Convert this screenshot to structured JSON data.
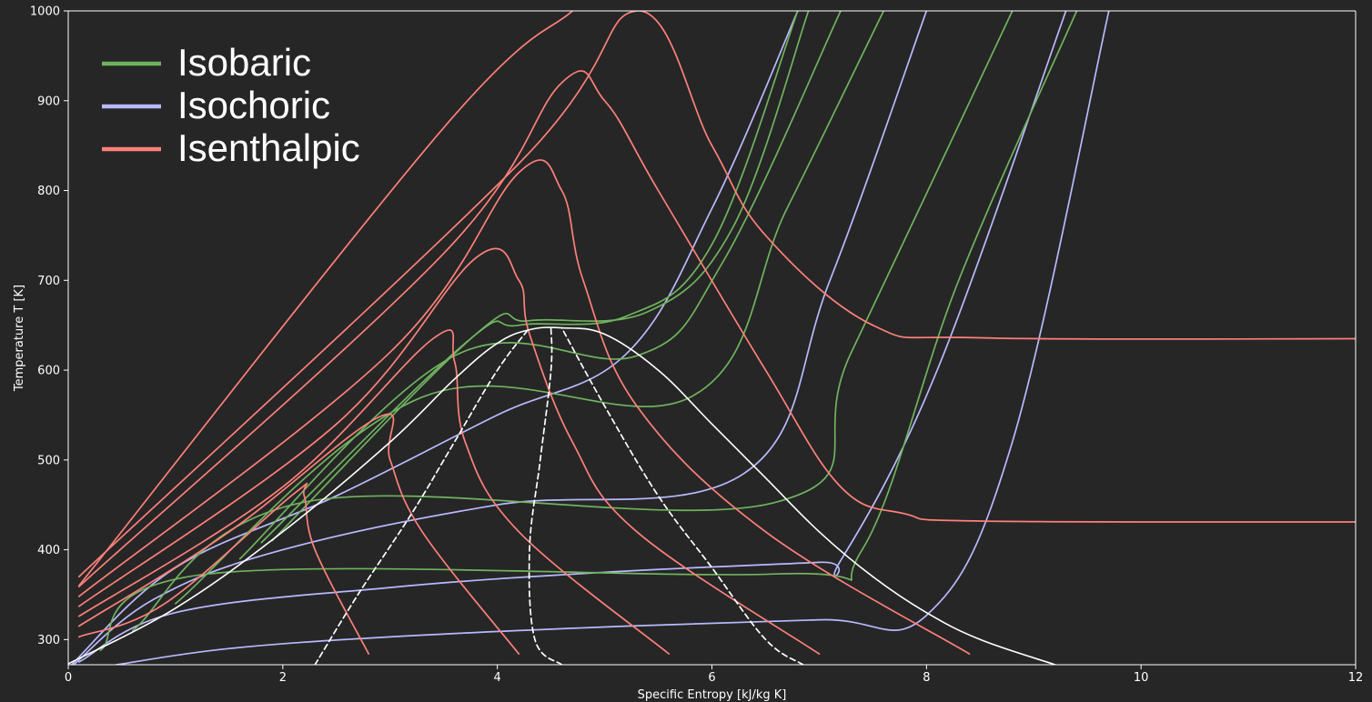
{
  "chart_data": {
    "type": "line",
    "title": "",
    "xlabel": "Specific Entropy [kJ/kg K]",
    "ylabel": "Temperature T [K]",
    "xlim": [
      0,
      12
    ],
    "ylim": [
      272,
      1000
    ],
    "xticks": [
      0,
      2,
      4,
      6,
      8,
      10,
      12
    ],
    "yticks": [
      300,
      400,
      500,
      600,
      700,
      800,
      900,
      1000
    ],
    "grid": false,
    "legend_position": "top-left",
    "background": "#262626",
    "legend": [
      {
        "label": "Isobaric",
        "color": "#6fb35f"
      },
      {
        "label": "Isochoric",
        "color": "#b9b9ff"
      },
      {
        "label": "Isenthalpic",
        "color": "#ff807a"
      }
    ],
    "series": [
      {
        "group": "saturation",
        "color": "#ffffff",
        "dash": false,
        "x": [
          0,
          1.0,
          2.0,
          3.0,
          3.6,
          4.0,
          4.3,
          4.6,
          5.0,
          5.5,
          6.0,
          6.5,
          7.0,
          7.5,
          8.0,
          8.5,
          9.2
        ],
        "y": [
          273,
          335,
          420,
          520,
          590,
          630,
          645,
          647,
          640,
          600,
          540,
          480,
          420,
          370,
          330,
          300,
          272
        ]
      },
      {
        "group": "quality",
        "color": "#ffffff",
        "dash": true,
        "x": [
          2.3,
          2.7,
          3.2,
          3.6,
          4.0,
          4.3
        ],
        "y": [
          272,
          350,
          440,
          520,
          600,
          647
        ]
      },
      {
        "group": "quality",
        "color": "#ffffff",
        "dash": true,
        "x": [
          4.6,
          4.35,
          4.3,
          4.4,
          4.5,
          4.5
        ],
        "y": [
          272,
          300,
          400,
          500,
          600,
          647
        ]
      },
      {
        "group": "quality",
        "color": "#ffffff",
        "dash": true,
        "x": [
          6.85,
          6.5,
          6.0,
          5.5,
          5.0,
          4.6
        ],
        "y": [
          272,
          300,
          380,
          460,
          560,
          647
        ]
      },
      {
        "group": "isobaric",
        "color": "#6fb35f",
        "dash": false,
        "x": [
          0.3,
          1.3,
          6.6,
          7.4,
          8.3,
          9.4
        ],
        "y": [
          288,
          373,
          373,
          400,
          700,
          1000
        ]
      },
      {
        "group": "isobaric",
        "color": "#6fb35f",
        "dash": false,
        "x": [
          0.6,
          2.2,
          6.6,
          7.3,
          8.8
        ],
        "y": [
          310,
          453,
          453,
          620,
          1000
        ]
      },
      {
        "group": "isobaric",
        "color": "#6fb35f",
        "dash": false,
        "x": [
          1.0,
          3.3,
          5.8,
          6.7,
          7.6
        ],
        "y": [
          340,
          570,
          570,
          780,
          1000
        ]
      },
      {
        "group": "isobaric",
        "color": "#6fb35f",
        "dash": false,
        "x": [
          1.6,
          3.6,
          5.3,
          6.1,
          7.2
        ],
        "y": [
          390,
          616,
          616,
          720,
          1000
        ]
      },
      {
        "group": "isobaric",
        "color": "#6fb35f",
        "dash": false,
        "x": [
          1.8,
          3.7,
          4.2,
          5.2,
          6.0,
          6.8
        ],
        "y": [
          408,
          630,
          650,
          660,
          740,
          1000
        ]
      },
      {
        "group": "isobaric",
        "color": "#6fb35f",
        "dash": false,
        "x": [
          1.9,
          3.8,
          4.3,
          5.4,
          6.2,
          6.9
        ],
        "y": [
          410,
          640,
          655,
          665,
          760,
          1000
        ]
      },
      {
        "group": "isochoric",
        "color": "#b9b9ff",
        "dash": false,
        "x": [
          0.45,
          1.5,
          3.0,
          5.0,
          7.0,
          8.0,
          8.8,
          9.7
        ],
        "y": [
          272,
          290,
          303,
          314,
          322,
          327,
          520,
          1000
        ]
      },
      {
        "group": "isochoric",
        "color": "#b9b9ff",
        "dash": false,
        "x": [
          0.1,
          1.0,
          3.0,
          5.0,
          7.0,
          7.2,
          8.1,
          9.3
        ],
        "y": [
          275,
          330,
          358,
          375,
          386,
          388,
          600,
          1000
        ]
      },
      {
        "group": "isochoric",
        "color": "#b9b9ff",
        "dash": false,
        "x": [
          0.05,
          0.8,
          2.0,
          4.0,
          6.3,
          7.1,
          8.0
        ],
        "y": [
          272,
          345,
          400,
          450,
          485,
          700,
          1000
        ]
      },
      {
        "group": "isochoric",
        "color": "#b9b9ff",
        "dash": false,
        "x": [
          0.03,
          1.0,
          2.5,
          4.0,
          5.2,
          6.0,
          6.8
        ],
        "y": [
          272,
          380,
          460,
          550,
          618,
          780,
          1000
        ]
      },
      {
        "group": "isenthalpic",
        "color": "#ff807a",
        "dash": false,
        "x": [
          2.8,
          2.3,
          2.2,
          2.1,
          0.9,
          0.1
        ],
        "y": [
          284,
          400,
          460,
          462,
          340,
          303
        ]
      },
      {
        "group": "isenthalpic",
        "color": "#ff807a",
        "dash": false,
        "x": [
          4.2,
          3.3,
          3.0,
          2.9,
          1.5,
          0.1
        ],
        "y": [
          284,
          420,
          500,
          548,
          420,
          315
        ]
      },
      {
        "group": "isenthalpic",
        "color": "#ff807a",
        "dash": false,
        "x": [
          5.6,
          4.2,
          3.7,
          3.6,
          3.4,
          2.0,
          0.1
        ],
        "y": [
          284,
          420,
          520,
          610,
          635,
          470,
          326
        ]
      },
      {
        "group": "isenthalpic",
        "color": "#ff807a",
        "dash": false,
        "x": [
          7.0,
          5.3,
          4.7,
          4.3,
          4.2,
          3.8,
          2.5,
          0.1
        ],
        "y": [
          284,
          420,
          520,
          640,
          700,
          725,
          540,
          337
        ]
      },
      {
        "group": "isenthalpic",
        "color": "#ff807a",
        "dash": false,
        "x": [
          8.4,
          6.5,
          5.3,
          4.8,
          4.6,
          4.2,
          3.0,
          0.1
        ],
        "y": [
          284,
          420,
          560,
          700,
          800,
          820,
          620,
          348
        ]
      },
      {
        "group": "isenthalpic",
        "color": "#ff807a",
        "dash": false,
        "x": [
          12.0,
          8.5,
          7.8,
          7.2,
          6.5,
          5.5,
          5.0,
          4.6,
          3.5,
          0.1
        ],
        "y": [
          431,
          432,
          440,
          470,
          600,
          800,
          900,
          920,
          730,
          359
        ]
      },
      {
        "group": "isenthalpic",
        "color": "#ff807a",
        "dash": false,
        "x": [
          12.0,
          8.5,
          7.5,
          6.5,
          6.0,
          5.3,
          4.2,
          0.1
        ],
        "y": [
          635,
          636,
          650,
          750,
          850,
          1000,
          830,
          370
        ]
      },
      {
        "group": "isenthalpic",
        "color": "#ff807a",
        "dash": false,
        "x": [
          4.7,
          3.5,
          0.1
        ],
        "y": [
          1000,
          870,
          360
        ]
      }
    ]
  }
}
